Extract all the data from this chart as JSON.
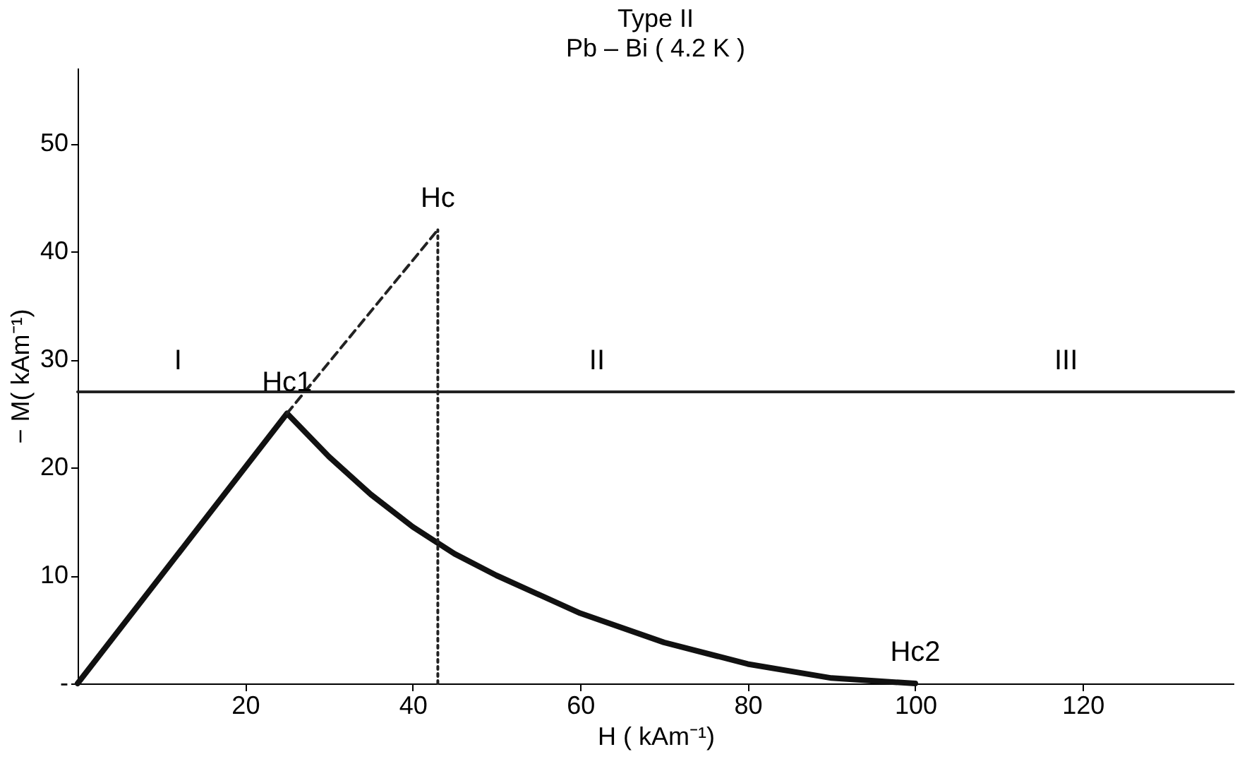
{
  "chart_data": {
    "type": "line",
    "title": "Type II",
    "subtitle": "Pb – Bi ( 4.2 K )",
    "xlabel": "H ( kAm⁻¹)",
    "ylabel": "− M( kAm⁻¹)",
    "xlim": [
      0,
      138
    ],
    "ylim": [
      0,
      57
    ],
    "xticks": [
      20,
      40,
      60,
      80,
      100,
      120
    ],
    "yticks": [
      {
        "value": 0,
        "label": "-"
      },
      10,
      20,
      30,
      40,
      50
    ],
    "grid": false,
    "marker": "none",
    "series": [
      {
        "color": "#111111",
        "line_style": "solid",
        "x": [
          0,
          25,
          30,
          35,
          40,
          45,
          50,
          60,
          70,
          80,
          90,
          100
        ],
        "values": [
          0,
          25,
          21,
          17.5,
          14.5,
          12,
          10,
          6.5,
          3.8,
          1.8,
          0.5,
          0
        ]
      },
      {
        "color": "#222222",
        "line_style": "dashed",
        "x": [
          25,
          43
        ],
        "values": [
          25,
          42
        ]
      },
      {
        "color": "#222222",
        "line_style": "dotted",
        "x": [
          43,
          43
        ],
        "values": [
          0,
          42
        ]
      },
      {
        "color": "#222222",
        "line_style": "solid",
        "x": [
          0,
          138
        ],
        "values": [
          27,
          27
        ]
      }
    ],
    "annotations": [
      {
        "text": "Hc",
        "x": 43,
        "y": 42
      },
      {
        "text": "Hc1",
        "x": 25,
        "y": 25
      },
      {
        "text": "Hc2",
        "x": 100,
        "y": 0
      },
      {
        "text": "I",
        "x": 12,
        "y": 27
      },
      {
        "text": "II",
        "x": 62,
        "y": 27
      },
      {
        "text": "III",
        "x": 118,
        "y": 27
      }
    ]
  }
}
